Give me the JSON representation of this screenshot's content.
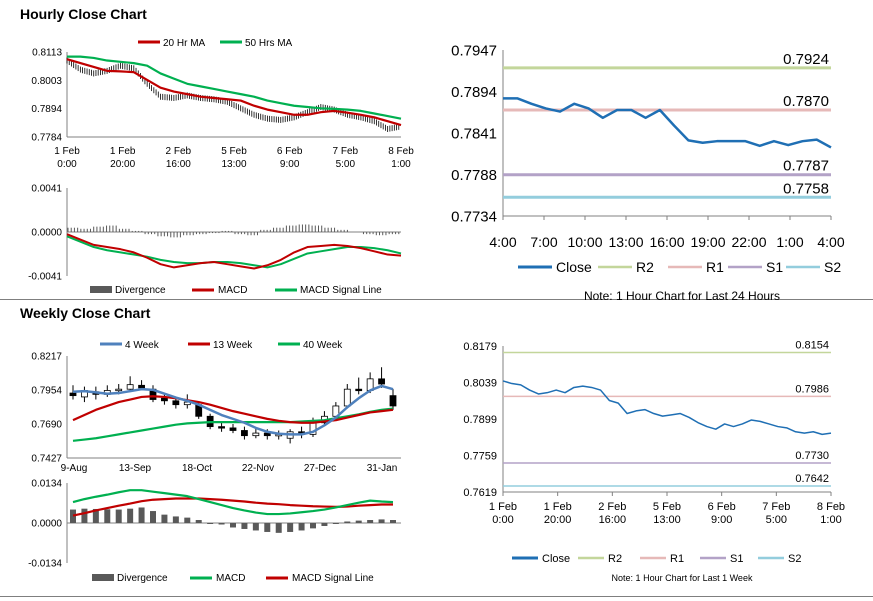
{
  "sections": {
    "hourly_title": "Hourly Close Chart",
    "weekly_title": "Weekly Close Chart"
  },
  "colors": {
    "red": "#c00000",
    "green": "#00b050",
    "blue": "#1f6fb4",
    "gray": "#595959",
    "r2": "#c3d69b",
    "r1": "#e6b9b8",
    "s1": "#b3a2c7",
    "s2": "#93cddd"
  },
  "chart_data": [
    {
      "id": "hourly_price",
      "type": "line",
      "legend": [
        "20 Hr MA",
        "50 Hrs MA"
      ],
      "ylim": [
        0.7784,
        0.8113
      ],
      "yticks": [
        "0.8113",
        "0.8003",
        "0.7894",
        "0.7784"
      ],
      "xticks": [
        [
          "1 Feb",
          "0:00"
        ],
        [
          "1 Feb",
          "20:00"
        ],
        [
          "2 Feb",
          "16:00"
        ],
        [
          "5 Feb",
          "13:00"
        ],
        [
          "6 Feb",
          "9:00"
        ],
        [
          "7 Feb",
          "5:00"
        ],
        [
          "8 Feb",
          "1:00"
        ]
      ],
      "series": [
        {
          "name": "20 Hr MA",
          "values": [
            0.8085,
            0.807,
            0.8055,
            0.804,
            0.8038,
            0.8035,
            0.8005,
            0.7975,
            0.796,
            0.795,
            0.794,
            0.7935,
            0.793,
            0.7925,
            0.7905,
            0.789,
            0.788,
            0.787,
            0.787,
            0.788,
            0.7885,
            0.7878,
            0.787,
            0.786,
            0.7845,
            0.783
          ]
        },
        {
          "name": "50 Hrs MA",
          "values": [
            0.8095,
            0.8095,
            0.809,
            0.808,
            0.8075,
            0.807,
            0.806,
            0.803,
            0.801,
            0.799,
            0.798,
            0.797,
            0.796,
            0.795,
            0.794,
            0.7925,
            0.7915,
            0.7905,
            0.79,
            0.7895,
            0.7893,
            0.789,
            0.7885,
            0.7875,
            0.7865,
            0.7855
          ]
        },
        {
          "name": "Price",
          "values": [
            0.808,
            0.8045,
            0.803,
            0.804,
            0.806,
            0.805,
            0.799,
            0.794,
            0.7935,
            0.7945,
            0.7935,
            0.793,
            0.792,
            0.7895,
            0.787,
            0.7855,
            0.785,
            0.786,
            0.788,
            0.79,
            0.789,
            0.787,
            0.786,
            0.7845,
            0.7815,
            0.7825
          ]
        }
      ]
    },
    {
      "id": "hourly_macd",
      "type": "bar",
      "legend": [
        "Divergence",
        "MACD",
        "MACD Signal Line"
      ],
      "ylim": [
        -0.0041,
        0.0041
      ],
      "yticks": [
        "0.0041",
        "0.0000",
        "-0.0041"
      ],
      "series": [
        {
          "name": "Divergence",
          "values": [
            0.0004,
            0.0003,
            0.0005,
            0.0006,
            0.0003,
            0.0001,
            -0.0002,
            -0.0004,
            -0.0005,
            -0.0003,
            -0.0002,
            -0.0001,
            0.0001,
            -0.0002,
            -0.0003,
            0.0002,
            0.0004,
            0.0006,
            0.0007,
            0.0006,
            0.0004,
            0.0002,
            0.0,
            -0.0002,
            -0.0003,
            -0.0002
          ]
        },
        {
          "name": "MACD",
          "values": [
            -0.0002,
            -0.0007,
            -0.0012,
            -0.0014,
            -0.0016,
            -0.0019,
            -0.0024,
            -0.003,
            -0.0033,
            -0.0031,
            -0.0029,
            -0.0028,
            -0.003,
            -0.0032,
            -0.0034,
            -0.0031,
            -0.0026,
            -0.0019,
            -0.0014,
            -0.0013,
            -0.0012,
            -0.0013,
            -0.0015,
            -0.0018,
            -0.0021,
            -0.0022
          ]
        },
        {
          "name": "MACD Signal Line",
          "values": [
            -0.0004,
            -0.0009,
            -0.0014,
            -0.0017,
            -0.0019,
            -0.0021,
            -0.0023,
            -0.0026,
            -0.0028,
            -0.0029,
            -0.0029,
            -0.0028,
            -0.0028,
            -0.0029,
            -0.0031,
            -0.0033,
            -0.003,
            -0.0025,
            -0.002,
            -0.0018,
            -0.0016,
            -0.0014,
            -0.0014,
            -0.0015,
            -0.0017,
            -0.002
          ]
        }
      ]
    },
    {
      "id": "hourly_24h",
      "type": "line",
      "ylim": [
        0.7734,
        0.7947
      ],
      "yticks": [
        "0.7947",
        "0.7894",
        "0.7841",
        "0.7788",
        "0.7734"
      ],
      "xticks": [
        "4:00",
        "7:00",
        "10:00",
        "13:00",
        "16:00",
        "19:00",
        "22:00",
        "1:00",
        "4:00"
      ],
      "levels": [
        {
          "name": "R2",
          "value": 0.7924,
          "label": "0.7924"
        },
        {
          "name": "R1",
          "value": 0.787,
          "label": "0.7870"
        },
        {
          "name": "S1",
          "value": 0.7787,
          "label": "0.7787"
        },
        {
          "name": "S2",
          "value": 0.7758,
          "label": "0.7758"
        }
      ],
      "close": [
        0.7885,
        0.7885,
        0.7878,
        0.7872,
        0.7868,
        0.7878,
        0.7872,
        0.786,
        0.787,
        0.787,
        0.786,
        0.787,
        0.785,
        0.7831,
        0.7828,
        0.783,
        0.783,
        0.783,
        0.7824,
        0.783,
        0.7825,
        0.783,
        0.7832,
        0.7822
      ],
      "legend": [
        "Close",
        "R2",
        "R1",
        "S1",
        "S2"
      ],
      "note": "Note: 1 Hour Chart for Last 24 Hours"
    },
    {
      "id": "weekly_price",
      "type": "line",
      "legend": [
        "4 Week",
        "13 Week",
        "40 Week"
      ],
      "ylim": [
        0.7427,
        0.8217
      ],
      "yticks": [
        "0.8217",
        "0.7954",
        "0.7690",
        "0.7427"
      ],
      "xticks": [
        "9-Aug",
        "13-Sep",
        "18-Oct",
        "22-Nov",
        "27-Dec",
        "31-Jan"
      ],
      "candles": [
        {
          "o": 0.793,
          "c": 0.791,
          "h": 0.799,
          "l": 0.788
        },
        {
          "o": 0.79,
          "c": 0.795,
          "h": 0.798,
          "l": 0.786
        },
        {
          "o": 0.794,
          "c": 0.792,
          "h": 0.798,
          "l": 0.788
        },
        {
          "o": 0.792,
          "c": 0.795,
          "h": 0.799,
          "l": 0.79
        },
        {
          "o": 0.795,
          "c": 0.796,
          "h": 0.8,
          "l": 0.792
        },
        {
          "o": 0.796,
          "c": 0.7995,
          "h": 0.806,
          "l": 0.794
        },
        {
          "o": 0.799,
          "c": 0.797,
          "h": 0.803,
          "l": 0.795
        },
        {
          "o": 0.796,
          "c": 0.788,
          "h": 0.799,
          "l": 0.786
        },
        {
          "o": 0.789,
          "c": 0.787,
          "h": 0.793,
          "l": 0.784
        },
        {
          "o": 0.787,
          "c": 0.784,
          "h": 0.79,
          "l": 0.781
        },
        {
          "o": 0.784,
          "c": 0.786,
          "h": 0.792,
          "l": 0.781
        },
        {
          "o": 0.784,
          "c": 0.775,
          "h": 0.786,
          "l": 0.773
        },
        {
          "o": 0.775,
          "c": 0.767,
          "h": 0.777,
          "l": 0.765
        },
        {
          "o": 0.767,
          "c": 0.766,
          "h": 0.77,
          "l": 0.763
        },
        {
          "o": 0.766,
          "c": 0.764,
          "h": 0.769,
          "l": 0.762
        },
        {
          "o": 0.764,
          "c": 0.76,
          "h": 0.767,
          "l": 0.757
        },
        {
          "o": 0.76,
          "c": 0.762,
          "h": 0.766,
          "l": 0.758
        },
        {
          "o": 0.762,
          "c": 0.76,
          "h": 0.765,
          "l": 0.757
        },
        {
          "o": 0.76,
          "c": 0.761,
          "h": 0.764,
          "l": 0.757
        },
        {
          "o": 0.758,
          "c": 0.763,
          "h": 0.765,
          "l": 0.754
        },
        {
          "o": 0.763,
          "c": 0.761,
          "h": 0.767,
          "l": 0.758
        },
        {
          "o": 0.761,
          "c": 0.77,
          "h": 0.774,
          "l": 0.759
        },
        {
          "o": 0.77,
          "c": 0.775,
          "h": 0.779,
          "l": 0.768
        },
        {
          "o": 0.775,
          "c": 0.783,
          "h": 0.786,
          "l": 0.773
        },
        {
          "o": 0.783,
          "c": 0.796,
          "h": 0.8,
          "l": 0.781
        },
        {
          "o": 0.796,
          "c": 0.795,
          "h": 0.805,
          "l": 0.792
        },
        {
          "o": 0.795,
          "c": 0.804,
          "h": 0.809,
          "l": 0.793
        },
        {
          "o": 0.804,
          "c": 0.8,
          "h": 0.813,
          "l": 0.797
        },
        {
          "o": 0.791,
          "c": 0.783,
          "h": 0.796,
          "l": 0.78
        }
      ],
      "series": [
        {
          "name": "4 Week",
          "values": [
            0.794,
            0.7945,
            0.7935,
            0.7925,
            0.793,
            0.7945,
            0.796,
            0.7955,
            0.7925,
            0.7895,
            0.787,
            0.784,
            0.78,
            0.776,
            0.773,
            0.77,
            0.766,
            0.763,
            0.7615,
            0.761,
            0.761,
            0.763,
            0.768,
            0.774,
            0.782,
            0.789,
            0.795,
            0.7985,
            0.796
          ]
        },
        {
          "name": "13 Week",
          "values": [
            0.772,
            0.776,
            0.78,
            0.783,
            0.786,
            0.788,
            0.79,
            0.7905,
            0.79,
            0.789,
            0.7875,
            0.786,
            0.784,
            0.7815,
            0.779,
            0.777,
            0.775,
            0.773,
            0.7715,
            0.7705,
            0.77,
            0.77,
            0.771,
            0.772,
            0.774,
            0.776,
            0.778,
            0.779,
            0.78
          ]
        },
        {
          "name": "40 Week",
          "values": [
            0.756,
            0.757,
            0.758,
            0.7595,
            0.761,
            0.7625,
            0.764,
            0.7655,
            0.767,
            0.7685,
            0.7695,
            0.77,
            0.7705,
            0.7705,
            0.7705,
            0.7705,
            0.7705,
            0.7705,
            0.7705,
            0.7705,
            0.771,
            0.7715,
            0.772,
            0.7735,
            0.775,
            0.7765,
            0.7785,
            0.78,
            0.781
          ]
        }
      ]
    },
    {
      "id": "weekly_macd",
      "type": "bar",
      "legend": [
        "Divergence",
        "MACD",
        "MACD Signal Line"
      ],
      "ylim": [
        -0.0134,
        0.0134
      ],
      "yticks": [
        "0.0134",
        "0.0000",
        "-0.0134"
      ],
      "series": [
        {
          "name": "Divergence",
          "values": [
            0.0045,
            0.0048,
            0.0047,
            0.0046,
            0.0045,
            0.0048,
            0.0052,
            0.004,
            0.0028,
            0.0022,
            0.0018,
            0.001,
            0.0,
            -0.0005,
            -0.0015,
            -0.002,
            -0.0025,
            -0.003,
            -0.0033,
            -0.003,
            -0.0025,
            -0.0018,
            -0.001,
            -0.0002,
            0.0005,
            0.0008,
            0.001,
            0.0012,
            0.001
          ]
        },
        {
          "name": "MACD",
          "values": [
            0.007,
            0.008,
            0.0088,
            0.0095,
            0.0103,
            0.011,
            0.011,
            0.0105,
            0.01,
            0.0095,
            0.009,
            0.008,
            0.007,
            0.006,
            0.005,
            0.0042,
            0.0035,
            0.003,
            0.003,
            0.0032,
            0.0036,
            0.004,
            0.0045,
            0.0052,
            0.006,
            0.0068,
            0.0075,
            0.0072,
            0.007
          ]
        },
        {
          "name": "MACD Signal Line",
          "values": [
            0.0025,
            0.0033,
            0.0042,
            0.005,
            0.0058,
            0.0065,
            0.0073,
            0.0078,
            0.008,
            0.0082,
            0.0082,
            0.0082,
            0.008,
            0.0078,
            0.0075,
            0.0072,
            0.0068,
            0.0065,
            0.0063,
            0.006,
            0.0058,
            0.0056,
            0.0055,
            0.0054,
            0.0055,
            0.0058,
            0.006,
            0.0062,
            0.0062
          ]
        }
      ]
    },
    {
      "id": "weekly_1w",
      "type": "line",
      "ylim": [
        0.7619,
        0.8179
      ],
      "yticks": [
        "0.8179",
        "0.8039",
        "0.7899",
        "0.7759",
        "0.7619"
      ],
      "xticks": [
        [
          "1 Feb",
          "0:00"
        ],
        [
          "1 Feb",
          "20:00"
        ],
        [
          "2 Feb",
          "16:00"
        ],
        [
          "5 Feb",
          "13:00"
        ],
        [
          "6 Feb",
          "9:00"
        ],
        [
          "7 Feb",
          "5:00"
        ],
        [
          "8 Feb",
          "1:00"
        ]
      ],
      "levels": [
        {
          "name": "R2",
          "value": 0.8154,
          "label": "0.8154"
        },
        {
          "name": "R1",
          "value": 0.7986,
          "label": "0.7986"
        },
        {
          "name": "S1",
          "value": 0.773,
          "label": "0.7730"
        },
        {
          "name": "S2",
          "value": 0.7642,
          "label": "0.7642"
        }
      ],
      "close": [
        0.8045,
        0.8035,
        0.803,
        0.801,
        0.7995,
        0.8,
        0.801,
        0.8,
        0.802,
        0.8025,
        0.802,
        0.801,
        0.797,
        0.796,
        0.792,
        0.793,
        0.7935,
        0.792,
        0.791,
        0.7915,
        0.792,
        0.7905,
        0.7885,
        0.787,
        0.786,
        0.788,
        0.787,
        0.788,
        0.7895,
        0.789,
        0.788,
        0.787,
        0.7865,
        0.785,
        0.7845,
        0.785,
        0.784,
        0.7845
      ],
      "legend": [
        "Close",
        "R2",
        "R1",
        "S1",
        "S2"
      ],
      "note": "Note: 1 Hour Chart for Last 1 Week"
    }
  ]
}
